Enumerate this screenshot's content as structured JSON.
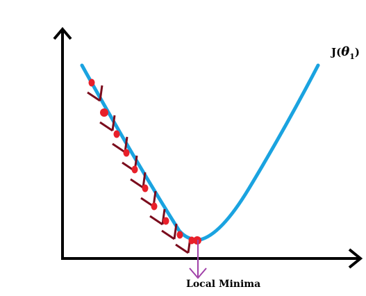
{
  "curve_label": {
    "prefix": "J(",
    "symbol": "θ",
    "subscript": "1",
    "suffix": ")"
  },
  "annotation": {
    "text": "Local Minima"
  },
  "colors": {
    "axes": "#000000",
    "curve": "#1aa3e0",
    "steps": "#e8202a",
    "step_arrows": "#7a0b1c",
    "minima_arrow": "#a040a8"
  },
  "gradient_steps": {
    "count": 11
  }
}
